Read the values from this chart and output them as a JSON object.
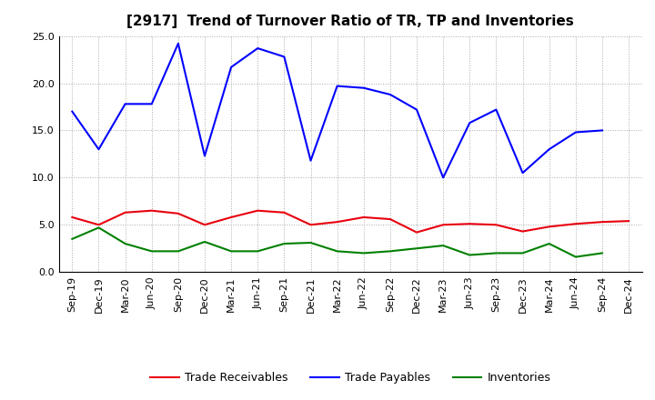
{
  "title": "[2917]  Trend of Turnover Ratio of TR, TP and Inventories",
  "x_labels": [
    "Sep-19",
    "Dec-19",
    "Mar-20",
    "Jun-20",
    "Sep-20",
    "Dec-20",
    "Mar-21",
    "Jun-21",
    "Sep-21",
    "Dec-21",
    "Mar-22",
    "Jun-22",
    "Sep-22",
    "Dec-22",
    "Mar-23",
    "Jun-23",
    "Sep-23",
    "Dec-23",
    "Mar-24",
    "Jun-24",
    "Sep-24",
    "Dec-24"
  ],
  "trade_receivables": [
    5.8,
    5.0,
    6.3,
    6.5,
    6.2,
    5.0,
    5.8,
    6.5,
    6.3,
    5.0,
    5.3,
    5.8,
    5.6,
    4.2,
    5.0,
    5.1,
    5.0,
    4.3,
    4.8,
    5.1,
    5.3,
    5.4
  ],
  "trade_payables": [
    17.0,
    13.0,
    17.8,
    17.8,
    24.2,
    12.3,
    21.7,
    23.7,
    22.8,
    11.8,
    19.7,
    19.5,
    18.8,
    17.2,
    10.0,
    15.8,
    17.2,
    10.5,
    13.0,
    14.8,
    15.0,
    null
  ],
  "inventories": [
    3.5,
    4.7,
    3.0,
    2.2,
    2.2,
    3.2,
    2.2,
    2.2,
    3.0,
    3.1,
    2.2,
    2.0,
    2.2,
    2.5,
    2.8,
    1.8,
    2.0,
    2.0,
    3.0,
    1.6,
    2.0,
    null
  ],
  "ylim": [
    0.0,
    25.0
  ],
  "yticks": [
    0.0,
    5.0,
    10.0,
    15.0,
    20.0,
    25.0
  ],
  "color_tr": "#e8000d",
  "color_tp": "#0000ff",
  "color_inv": "#008000",
  "legend_labels": [
    "Trade Receivables",
    "Trade Payables",
    "Inventories"
  ],
  "title_fontsize": 11,
  "tick_fontsize": 8,
  "legend_fontsize": 9
}
